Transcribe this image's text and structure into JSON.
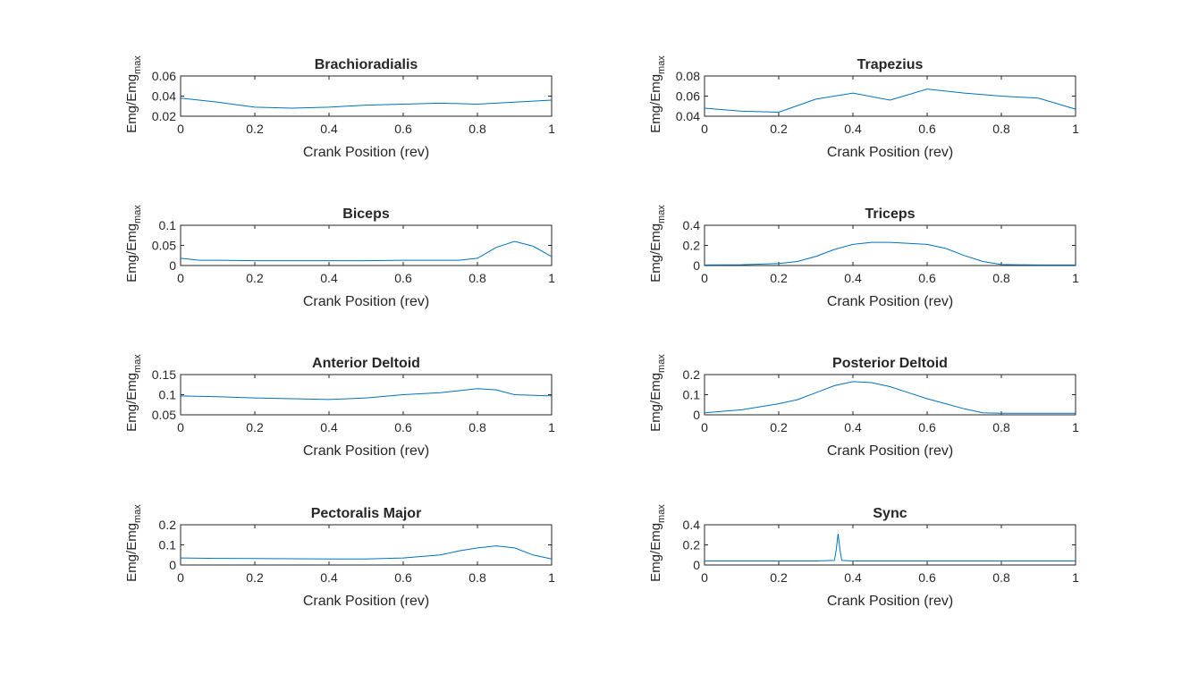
{
  "figure": {
    "background": "#ffffff",
    "axes_color": "#262626",
    "line_color": "#0072BD"
  },
  "chart_data": [
    {
      "type": "line",
      "title": "Brachioradialis",
      "xlabel": "Crank Position (rev)",
      "ylabel": "Emg/Emg",
      "ylabel_sub": "max",
      "xlim": [
        0,
        1
      ],
      "ylim": [
        0.02,
        0.06
      ],
      "xticks": [
        "0",
        "0.2",
        "0.4",
        "0.6",
        "0.8",
        "1"
      ],
      "yticks": [
        "0.02",
        "0.04",
        "0.06"
      ],
      "x": [
        0,
        0.1,
        0.2,
        0.3,
        0.4,
        0.5,
        0.6,
        0.7,
        0.8,
        0.9,
        1.0
      ],
      "y": [
        0.038,
        0.034,
        0.029,
        0.028,
        0.029,
        0.031,
        0.032,
        0.033,
        0.032,
        0.034,
        0.036
      ]
    },
    {
      "type": "line",
      "title": "Trapezius",
      "xlabel": "Crank Position (rev)",
      "ylabel": "Emg/Emg",
      "ylabel_sub": "max",
      "xlim": [
        0,
        1
      ],
      "ylim": [
        0.04,
        0.08
      ],
      "xticks": [
        "0",
        "0.2",
        "0.4",
        "0.6",
        "0.8",
        "1"
      ],
      "yticks": [
        "0.04",
        "0.06",
        "0.08"
      ],
      "x": [
        0,
        0.1,
        0.2,
        0.3,
        0.4,
        0.5,
        0.6,
        0.7,
        0.8,
        0.9,
        1.0
      ],
      "y": [
        0.048,
        0.045,
        0.044,
        0.057,
        0.063,
        0.056,
        0.067,
        0.063,
        0.06,
        0.058,
        0.047
      ]
    },
    {
      "type": "line",
      "title": "Biceps",
      "xlabel": "Crank Position (rev)",
      "ylabel": "Emg/Emg",
      "ylabel_sub": "max",
      "xlim": [
        0,
        1
      ],
      "ylim": [
        0,
        0.1
      ],
      "xticks": [
        "0",
        "0.2",
        "0.4",
        "0.6",
        "0.8",
        "1"
      ],
      "yticks": [
        "0",
        "0.05",
        "0.1"
      ],
      "x": [
        0,
        0.05,
        0.1,
        0.2,
        0.3,
        0.4,
        0.5,
        0.6,
        0.7,
        0.75,
        0.8,
        0.85,
        0.9,
        0.95,
        1.0
      ],
      "y": [
        0.018,
        0.013,
        0.013,
        0.012,
        0.012,
        0.012,
        0.012,
        0.013,
        0.013,
        0.013,
        0.018,
        0.045,
        0.06,
        0.048,
        0.022
      ]
    },
    {
      "type": "line",
      "title": "Triceps",
      "xlabel": "Crank Position (rev)",
      "ylabel": "Emg/Emg",
      "ylabel_sub": "max",
      "xlim": [
        0,
        1
      ],
      "ylim": [
        0,
        0.4
      ],
      "xticks": [
        "0",
        "0.2",
        "0.4",
        "0.6",
        "0.8",
        "1"
      ],
      "yticks": [
        "0",
        "0.2",
        "0.4"
      ],
      "x": [
        0,
        0.1,
        0.2,
        0.25,
        0.3,
        0.35,
        0.4,
        0.45,
        0.5,
        0.55,
        0.6,
        0.65,
        0.7,
        0.75,
        0.8,
        0.9,
        1.0
      ],
      "y": [
        0.005,
        0.008,
        0.02,
        0.04,
        0.09,
        0.16,
        0.21,
        0.23,
        0.23,
        0.22,
        0.21,
        0.17,
        0.1,
        0.04,
        0.01,
        0.005,
        0.005
      ]
    },
    {
      "type": "line",
      "title": "Anterior Deltoid",
      "xlabel": "Crank Position (rev)",
      "ylabel": "Emg/Emg",
      "ylabel_sub": "max",
      "xlim": [
        0,
        1
      ],
      "ylim": [
        0.05,
        0.15
      ],
      "xticks": [
        "0",
        "0.2",
        "0.4",
        "0.6",
        "0.8",
        "1"
      ],
      "yticks": [
        "0.05",
        "0.1",
        "0.15"
      ],
      "x": [
        0,
        0.1,
        0.2,
        0.3,
        0.4,
        0.5,
        0.6,
        0.7,
        0.8,
        0.85,
        0.9,
        1.0
      ],
      "y": [
        0.097,
        0.095,
        0.092,
        0.09,
        0.088,
        0.092,
        0.1,
        0.105,
        0.115,
        0.112,
        0.1,
        0.097
      ]
    },
    {
      "type": "line",
      "title": "Posterior Deltoid",
      "xlabel": "Crank Position (rev)",
      "ylabel": "Emg/Emg",
      "ylabel_sub": "max",
      "xlim": [
        0,
        1
      ],
      "ylim": [
        0,
        0.2
      ],
      "xticks": [
        "0",
        "0.2",
        "0.4",
        "0.6",
        "0.8",
        "1"
      ],
      "yticks": [
        "0",
        "0.1",
        "0.2"
      ],
      "x": [
        0,
        0.1,
        0.2,
        0.25,
        0.3,
        0.35,
        0.4,
        0.45,
        0.5,
        0.55,
        0.6,
        0.65,
        0.7,
        0.75,
        0.8,
        0.9,
        1.0
      ],
      "y": [
        0.01,
        0.025,
        0.055,
        0.075,
        0.11,
        0.145,
        0.165,
        0.16,
        0.14,
        0.11,
        0.08,
        0.055,
        0.03,
        0.01,
        0.008,
        0.008,
        0.008
      ]
    },
    {
      "type": "line",
      "title": "Pectoralis Major",
      "xlabel": "Crank Position (rev)",
      "ylabel": "Emg/Emg",
      "ylabel_sub": "max",
      "xlim": [
        0,
        1
      ],
      "ylim": [
        0,
        0.2
      ],
      "xticks": [
        "0",
        "0.2",
        "0.4",
        "0.6",
        "0.8",
        "1"
      ],
      "yticks": [
        "0",
        "0.1",
        "0.2"
      ],
      "x": [
        0,
        0.1,
        0.2,
        0.3,
        0.4,
        0.5,
        0.6,
        0.7,
        0.75,
        0.8,
        0.85,
        0.9,
        0.95,
        1.0
      ],
      "y": [
        0.035,
        0.033,
        0.032,
        0.031,
        0.03,
        0.03,
        0.035,
        0.05,
        0.07,
        0.085,
        0.095,
        0.085,
        0.05,
        0.03
      ]
    },
    {
      "type": "line",
      "title": "Sync",
      "xlabel": "Crank Position (rev)",
      "ylabel": "Emg/Emg",
      "ylabel_sub": "max",
      "xlim": [
        0,
        1
      ],
      "ylim": [
        0,
        0.4
      ],
      "xticks": [
        "0",
        "0.2",
        "0.4",
        "0.6",
        "0.8",
        "1"
      ],
      "yticks": [
        "0",
        "0.2",
        "0.4"
      ],
      "x": [
        0,
        0.3,
        0.35,
        0.355,
        0.36,
        0.365,
        0.37,
        0.4,
        0.6,
        0.8,
        1.0
      ],
      "y": [
        0.04,
        0.04,
        0.045,
        0.15,
        0.31,
        0.15,
        0.045,
        0.04,
        0.04,
        0.04,
        0.04
      ]
    }
  ]
}
